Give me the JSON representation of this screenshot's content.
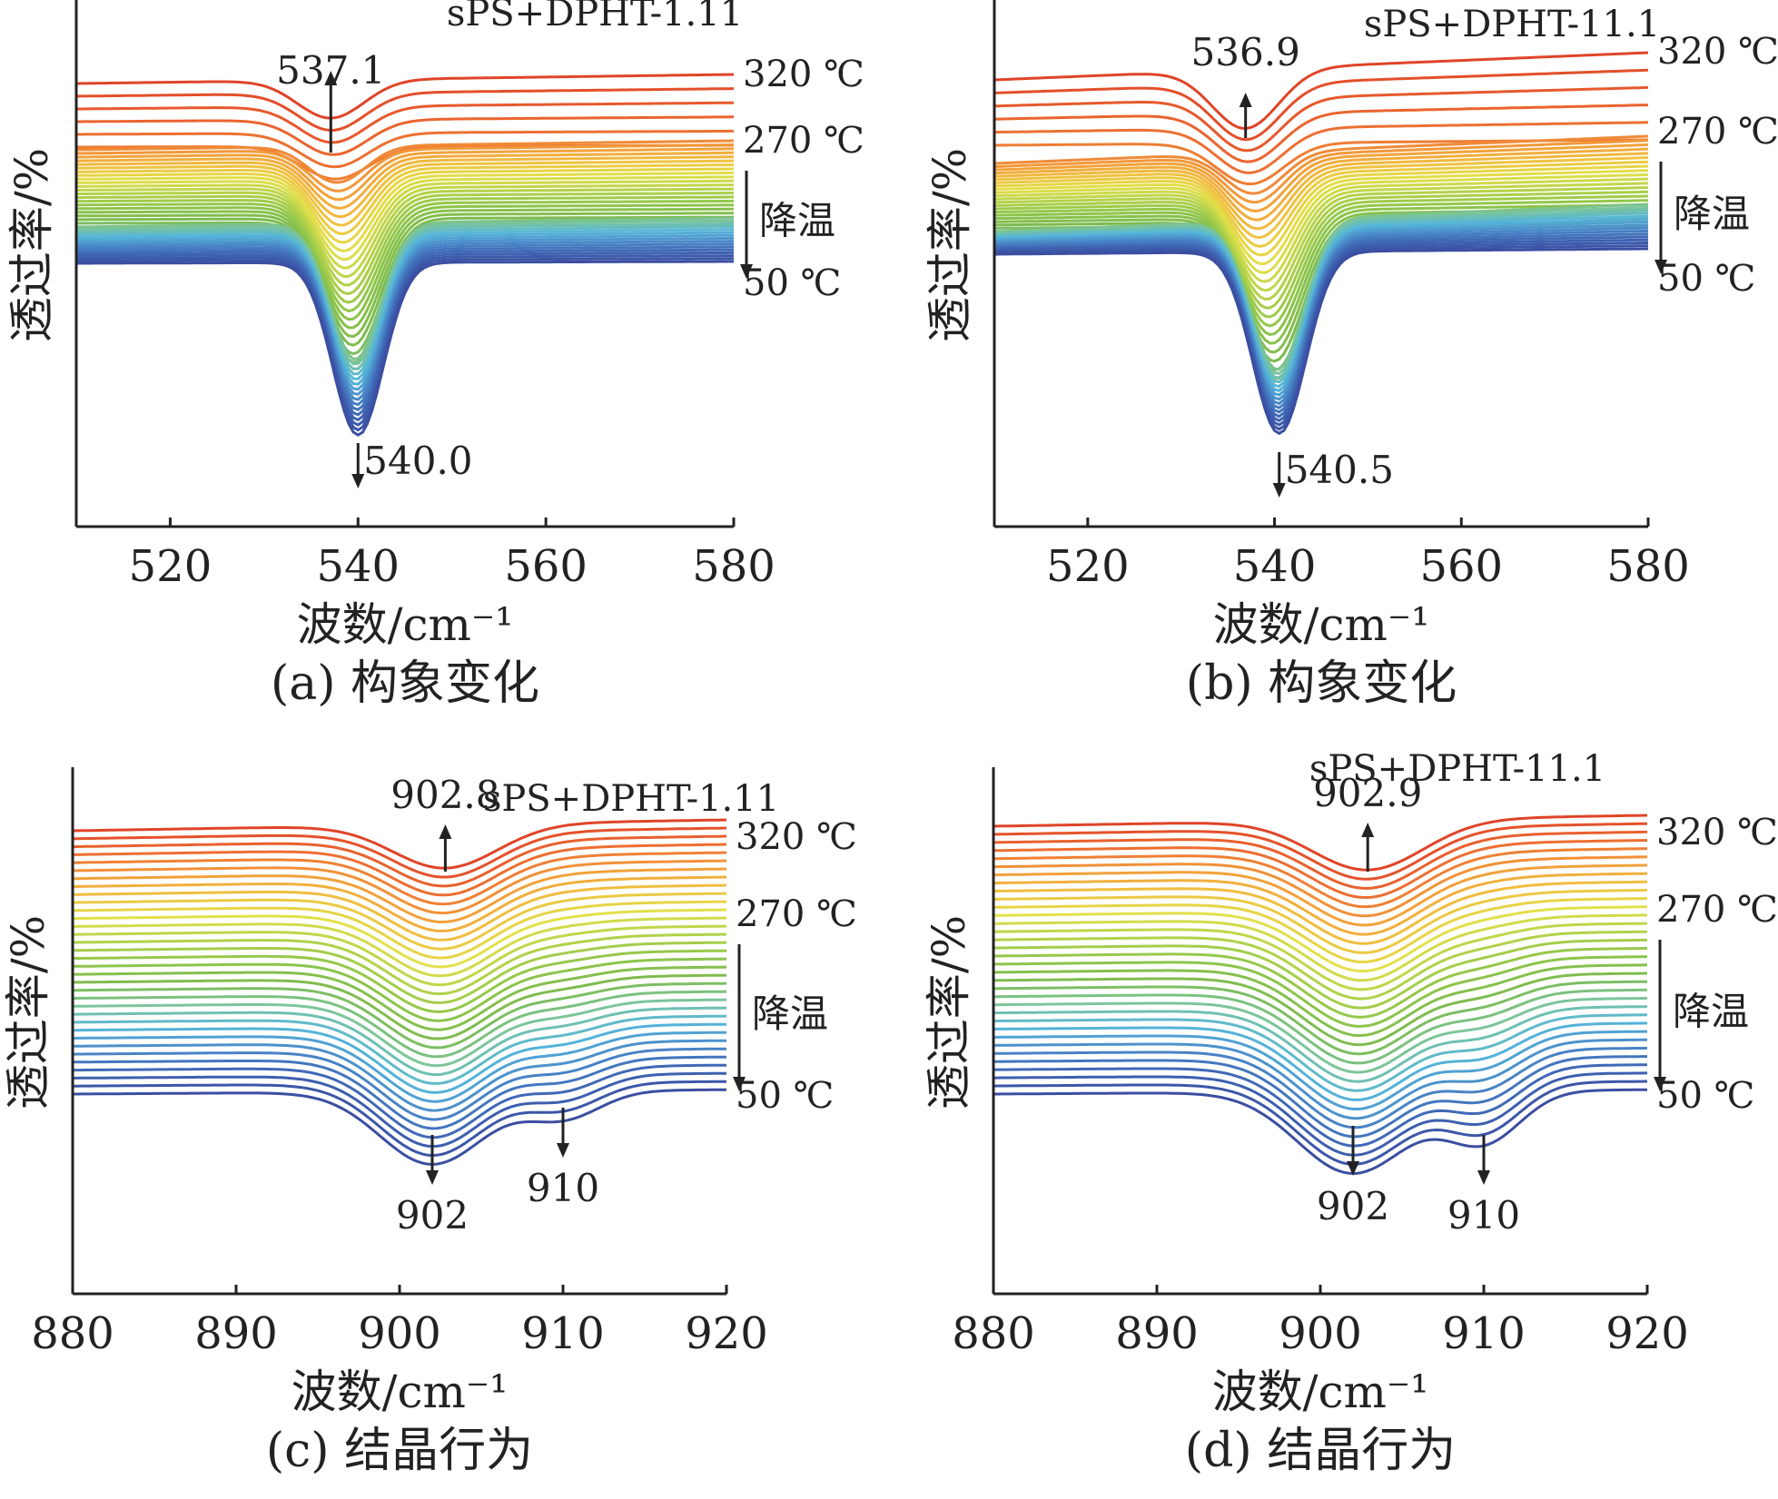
{
  "chart_data": [
    {
      "panel": "a",
      "type": "line",
      "caption": "(a) 构象变化",
      "sample_label": "sPS+DPHT-1.11",
      "xlabel": "波数/cm⁻¹",
      "ylabel": "透过率/%",
      "xlim": [
        510,
        580
      ],
      "xticks": [
        520,
        540,
        560,
        580
      ],
      "temperature_labels": [
        "320 ℃",
        "270 ℃",
        "50 ℃"
      ],
      "cooling_label": "降温",
      "series_count": 44,
      "peak_shift": {
        "from": 537.1,
        "to": 540.0
      },
      "annotations": [
        {
          "text": "537.1",
          "x": 537.1,
          "direction": "up"
        },
        {
          "text": "540.0",
          "x": 540.0,
          "direction": "down"
        }
      ]
    },
    {
      "panel": "b",
      "type": "line",
      "caption": "(b) 构象变化",
      "sample_label": "sPS+DPHT-11.1",
      "xlabel": "波数/cm⁻¹",
      "ylabel": "透过率/%",
      "xlim": [
        510,
        580
      ],
      "xticks": [
        520,
        540,
        560,
        580
      ],
      "temperature_labels": [
        "320 ℃",
        "270 ℃",
        "50 ℃"
      ],
      "cooling_label": "降温",
      "series_count": 44,
      "peak_shift": {
        "from": 536.9,
        "to": 540.5
      },
      "annotations": [
        {
          "text": "536.9",
          "x": 536.9,
          "direction": "up"
        },
        {
          "text": "540.5",
          "x": 540.5,
          "direction": "down"
        }
      ]
    },
    {
      "panel": "c",
      "type": "line",
      "caption": "(c) 结晶行为",
      "sample_label": "sPS+DPHT-1.11",
      "xlabel": "波数/cm⁻¹",
      "ylabel": "透过率/%",
      "xlim": [
        880,
        920
      ],
      "xticks": [
        880,
        890,
        900,
        910,
        920
      ],
      "temperature_labels": [
        "320 ℃",
        "270 ℃",
        "50 ℃"
      ],
      "cooling_label": "降温",
      "series_count": 34,
      "peaks": {
        "high_temp": 902.8,
        "low_temp": [
          902,
          910
        ]
      },
      "annotations": [
        {
          "text": "902.8",
          "x": 902.8,
          "direction": "up"
        },
        {
          "text": "902",
          "x": 902,
          "direction": "down"
        },
        {
          "text": "910",
          "x": 910,
          "direction": "down"
        }
      ]
    },
    {
      "panel": "d",
      "type": "line",
      "caption": "(d) 结晶行为",
      "sample_label": "sPS+DPHT-11.1",
      "xlabel": "波数/cm⁻¹",
      "ylabel": "透过率/%",
      "xlim": [
        880,
        920
      ],
      "xticks": [
        880,
        890,
        900,
        910,
        920
      ],
      "temperature_labels": [
        "320 ℃",
        "270 ℃",
        "50 ℃"
      ],
      "cooling_label": "降温",
      "series_count": 34,
      "peaks": {
        "high_temp": 902.9,
        "low_temp": [
          902,
          910
        ]
      },
      "annotations": [
        {
          "text": "902.9",
          "x": 902.9,
          "direction": "up"
        },
        {
          "text": "902",
          "x": 902,
          "direction": "down"
        },
        {
          "text": "910",
          "x": 910,
          "direction": "down"
        }
      ]
    }
  ]
}
